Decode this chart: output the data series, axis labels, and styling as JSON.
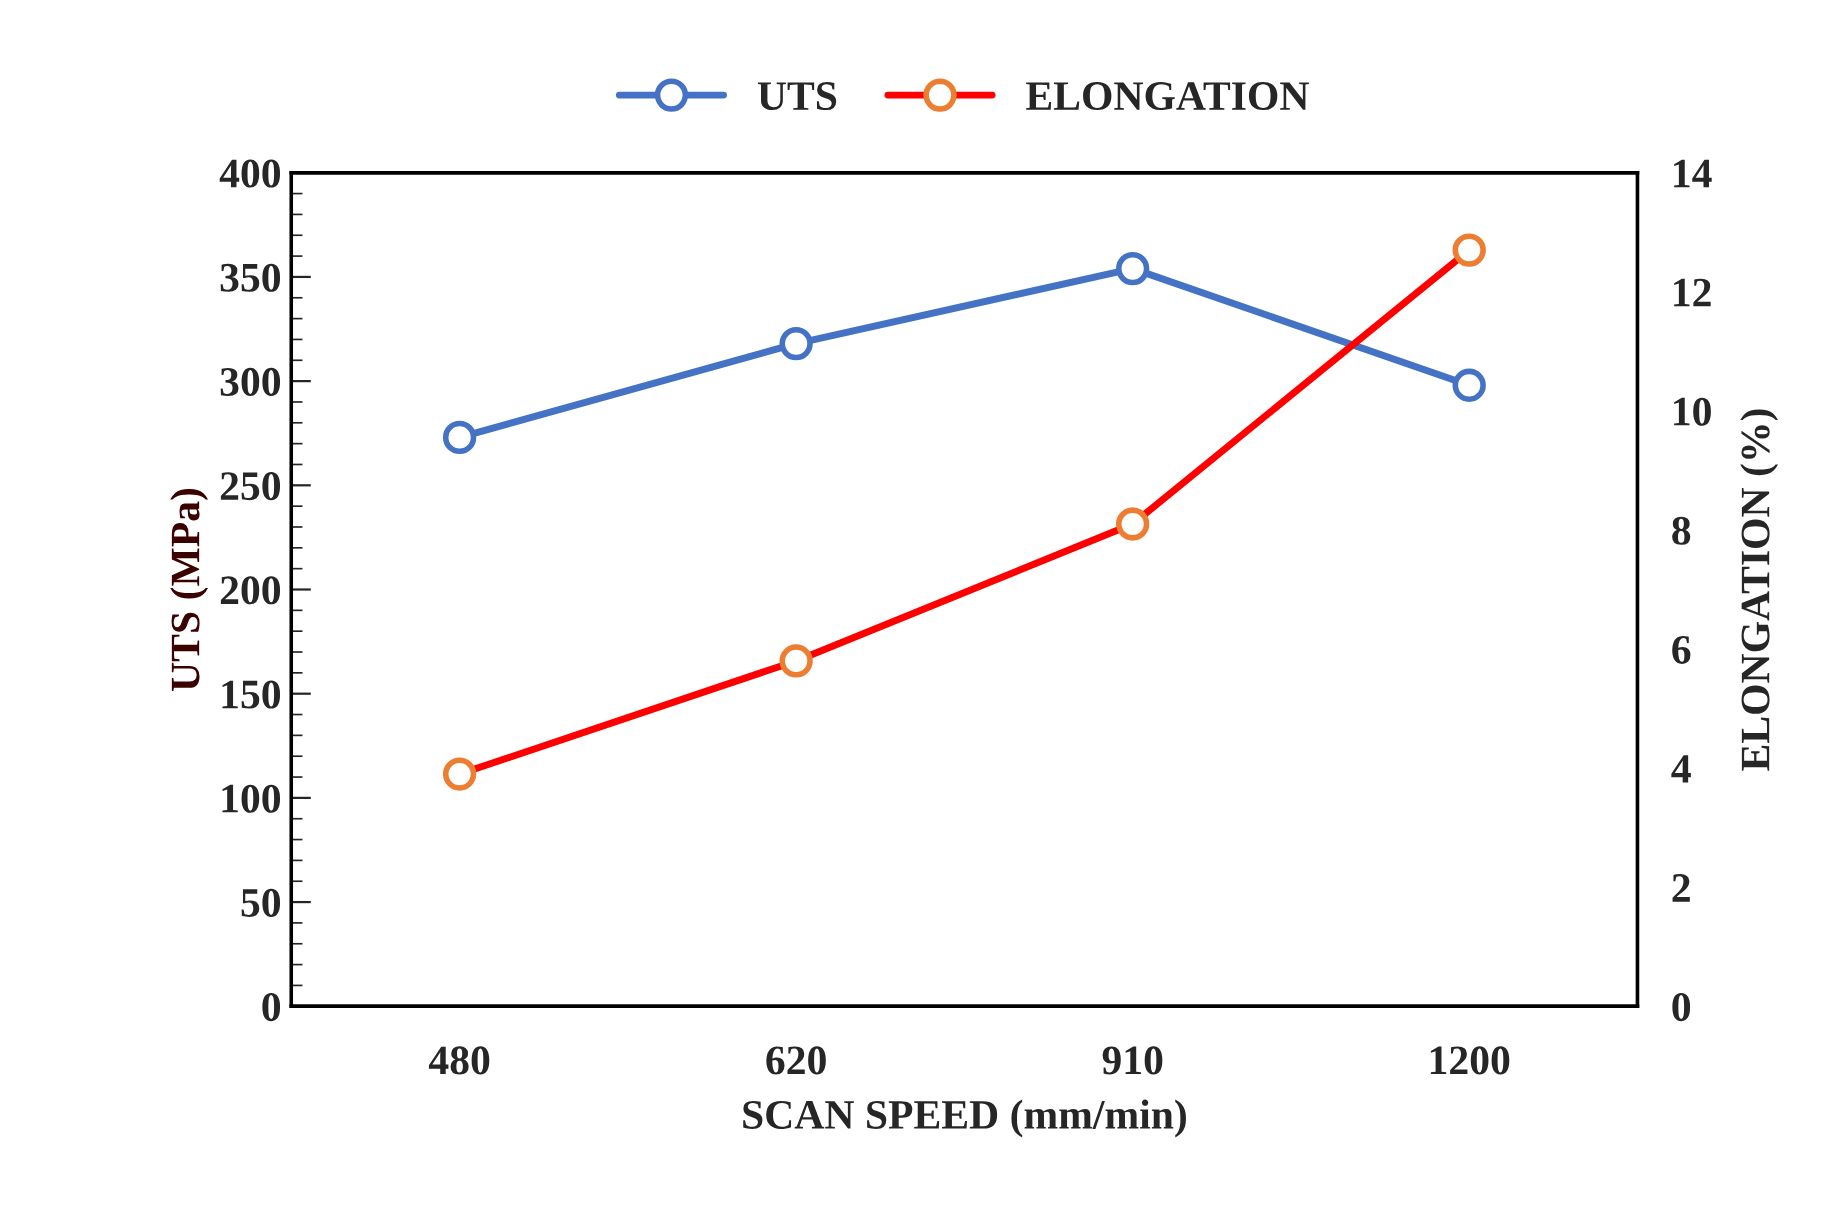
{
  "chart_data": {
    "type": "line",
    "xlabel": "SCAN SPEED (mm/min)",
    "ylabel": "UTS (MPa)",
    "y2label": "ELONGATION (%)",
    "categories": [
      "480",
      "620",
      "910",
      "1200"
    ],
    "series": [
      {
        "name": "UTS",
        "color": "#4472c4",
        "values": [
          273,
          318,
          354,
          298
        ]
      },
      {
        "name": "ELONGATION",
        "color": "#ff0000",
        "axis": "y2",
        "values": [
          3.9,
          5.8,
          8.1,
          12.7
        ]
      }
    ],
    "ylim": [
      0,
      400
    ],
    "yticks": [
      0,
      50,
      100,
      150,
      200,
      250,
      300,
      350,
      400
    ],
    "y2lim": [
      0,
      14
    ],
    "y2ticks": [
      0,
      2,
      4,
      6,
      8,
      10,
      12,
      14
    ],
    "marker": "circle",
    "line_style": "solid",
    "grid": false,
    "legend": "top"
  }
}
